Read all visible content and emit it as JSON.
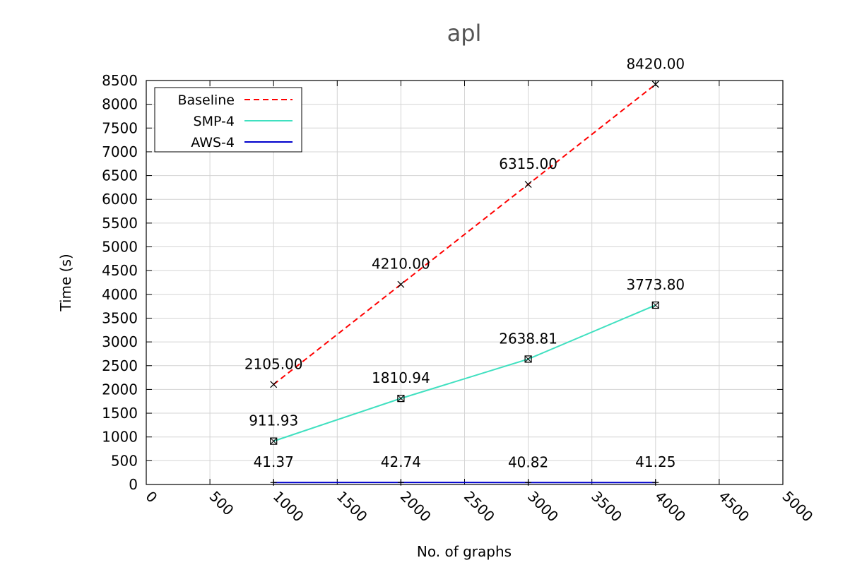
{
  "chart_data": {
    "type": "line",
    "title": "apl",
    "xlabel": "No. of graphs",
    "ylabel": "Time (s)",
    "xlim": [
      0,
      5000
    ],
    "ylim": [
      0,
      8500
    ],
    "xticks": [
      0,
      500,
      1000,
      1500,
      2000,
      2500,
      3000,
      3500,
      4000,
      4500,
      5000
    ],
    "yticks": [
      0,
      500,
      1000,
      1500,
      2000,
      2500,
      3000,
      3500,
      4000,
      4500,
      5000,
      5500,
      6000,
      6500,
      7000,
      7500,
      8000,
      8500
    ],
    "grid": true,
    "legend_position": "top-left",
    "x": [
      1000,
      2000,
      3000,
      4000
    ],
    "series": [
      {
        "name": "Baseline",
        "values": [
          2105.0,
          4210.0,
          6315.0,
          8420.0
        ],
        "labels": [
          "2105.00",
          "4210.00",
          "6315.00",
          "8420.00"
        ],
        "color": "#ff0000",
        "line_style": "dashed",
        "marker": "x"
      },
      {
        "name": "SMP-4",
        "values": [
          911.93,
          1810.94,
          2638.81,
          3773.8
        ],
        "labels": [
          "911.93",
          "1810.94",
          "2638.81",
          "3773.80"
        ],
        "color": "#40e0c0",
        "line_style": "solid",
        "marker": "box-x"
      },
      {
        "name": "AWS-4",
        "values": [
          41.37,
          42.74,
          40.82,
          41.25
        ],
        "labels": [
          "41.37",
          "42.74",
          "40.82",
          "41.25"
        ],
        "color": "#0000cc",
        "line_style": "solid",
        "marker": "plus"
      }
    ]
  }
}
